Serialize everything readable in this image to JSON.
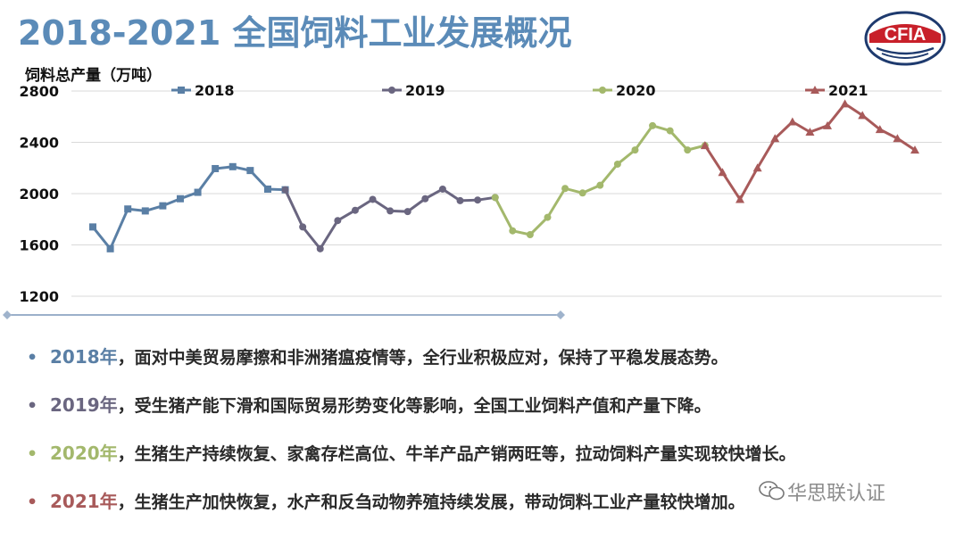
{
  "title": "2018-2021 全国饲料工业发展概况",
  "logo_text": "CFIA",
  "chart_data": {
    "type": "line",
    "ylabel": "饲料总产量（万吨）",
    "ylim": [
      1200,
      2800
    ],
    "yticks": [
      1200,
      1600,
      2000,
      2400,
      2800
    ],
    "grid": true,
    "legend_position": "top",
    "series": [
      {
        "name": "2018",
        "color": "#5a7fa5",
        "marker": "square",
        "x": [
          0,
          1,
          2,
          3,
          4,
          5,
          6,
          7,
          8,
          9,
          10,
          11
        ],
        "values": [
          1740,
          1570,
          1880,
          1865,
          1905,
          1960,
          2010,
          2195,
          2210,
          2180,
          2035,
          2030
        ]
      },
      {
        "name": "2019",
        "color": "#6a6680",
        "marker": "circle",
        "x": [
          11,
          12,
          13,
          14,
          15,
          16,
          17,
          18,
          19,
          20,
          21,
          22,
          23
        ],
        "values": [
          2030,
          1740,
          1570,
          1790,
          1870,
          1955,
          1865,
          1860,
          1960,
          2035,
          1945,
          1950,
          1970
        ]
      },
      {
        "name": "2020",
        "color": "#a3b86c",
        "marker": "circle",
        "x": [
          23,
          24,
          25,
          26,
          27,
          28,
          29,
          30,
          31,
          32,
          33,
          34,
          35
        ],
        "values": [
          1970,
          1710,
          1680,
          1815,
          2040,
          2005,
          2065,
          2230,
          2340,
          2530,
          2490,
          2340,
          2375
        ]
      },
      {
        "name": "2021",
        "color": "#a85a5a",
        "marker": "triangle",
        "x": [
          35,
          36,
          37,
          38,
          39,
          40,
          41,
          42,
          43,
          44,
          45,
          46,
          47
        ],
        "values": [
          2375,
          2165,
          1955,
          2200,
          2430,
          2560,
          2480,
          2530,
          2700,
          2610,
          2500,
          2430,
          2340
        ]
      }
    ]
  },
  "bullets": [
    {
      "year": "2018年",
      "text": "，面对中美贸易摩擦和非洲猪瘟疫情等，全行业积极应对，保持了平稳发展态势。",
      "color": "#5a7fa5"
    },
    {
      "year": "2019年",
      "text": "，受生猪产能下滑和国际贸易形势变化等影响，全国工业饲料产值和产量下降。",
      "color": "#6a6680"
    },
    {
      "year": "2020年",
      "text": "，生猪生产持续恢复、家禽存栏高位、牛羊产品产销两旺等，拉动饲料产量实现较快增长。",
      "color": "#a3b86c"
    },
    {
      "year": "2021年",
      "text": "，生猪生产加快恢复，水产和反刍动物养殖持续发展，带动饲料工业产量较快增加。",
      "color": "#a85a5a"
    }
  ],
  "watermark": "华思联认证"
}
